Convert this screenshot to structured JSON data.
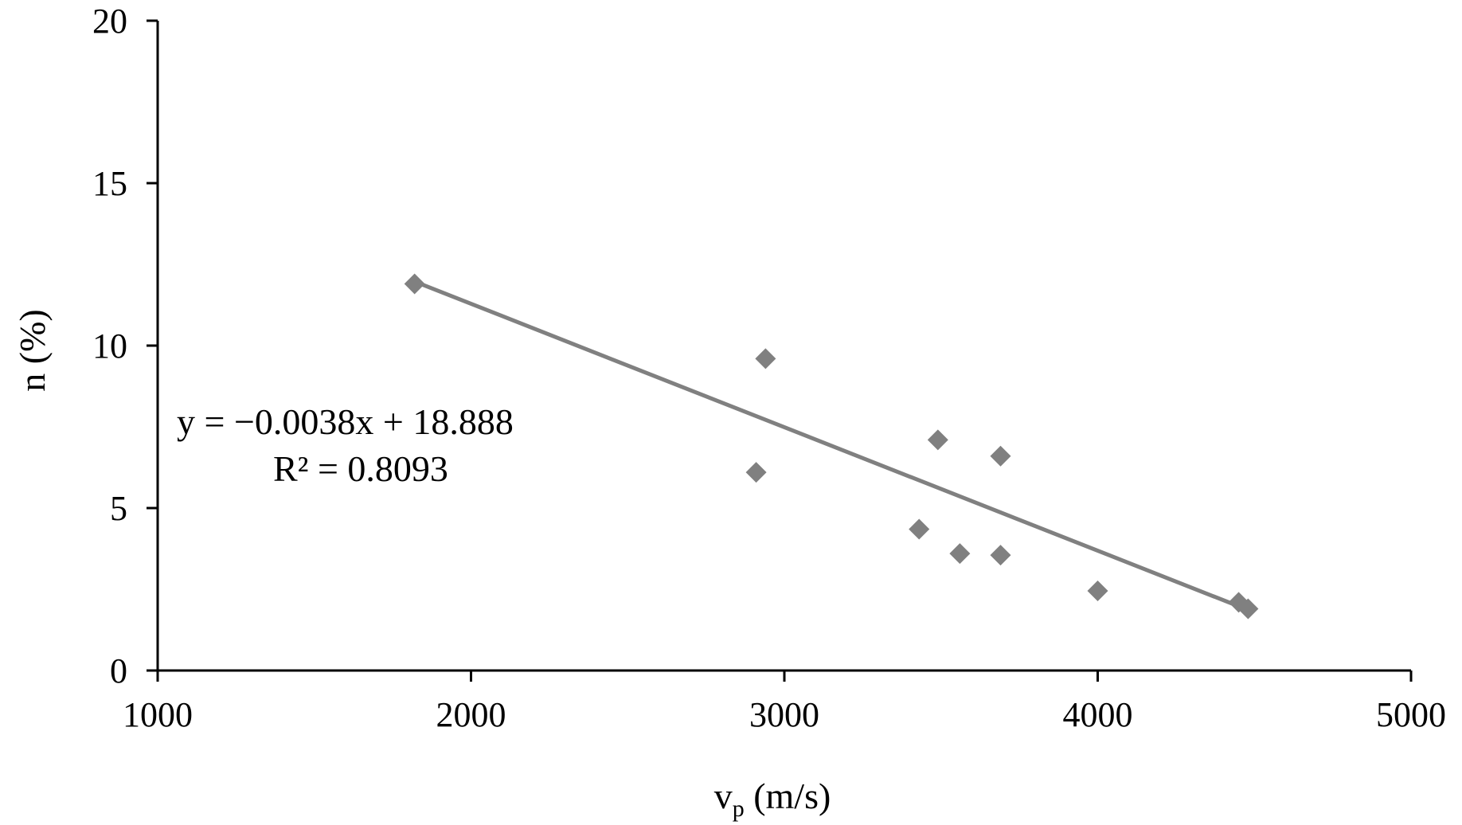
{
  "chart_data": {
    "type": "scatter",
    "xlabel_main": "v",
    "xlabel_sub": "p",
    "xlabel_rest": " (m/s)",
    "ylabel": "n (%)",
    "xlim": [
      1000,
      5000
    ],
    "ylim": [
      0,
      20
    ],
    "x_ticks": [
      1000,
      2000,
      3000,
      4000,
      5000
    ],
    "y_ticks": [
      0,
      5,
      10,
      15,
      20
    ],
    "grid": false,
    "legend": "none",
    "marker": "diamond",
    "marker_color": "#808080",
    "trendline_color": "#808080",
    "points": [
      {
        "x": 1820,
        "y": 11.9
      },
      {
        "x": 2940,
        "y": 9.6
      },
      {
        "x": 2910,
        "y": 6.1
      },
      {
        "x": 3490,
        "y": 7.1
      },
      {
        "x": 3690,
        "y": 6.6
      },
      {
        "x": 3430,
        "y": 4.35
      },
      {
        "x": 3560,
        "y": 3.6
      },
      {
        "x": 3690,
        "y": 3.55
      },
      {
        "x": 4000,
        "y": 2.45
      },
      {
        "x": 4450,
        "y": 2.1
      },
      {
        "x": 4480,
        "y": 1.9
      }
    ],
    "trendline": {
      "slope": -0.0038,
      "intercept": 18.888,
      "x_range": [
        1820,
        4480
      ]
    },
    "equation_text": "y = −0.0038x + 18.888",
    "r2_text": "R² = 0.8093"
  }
}
